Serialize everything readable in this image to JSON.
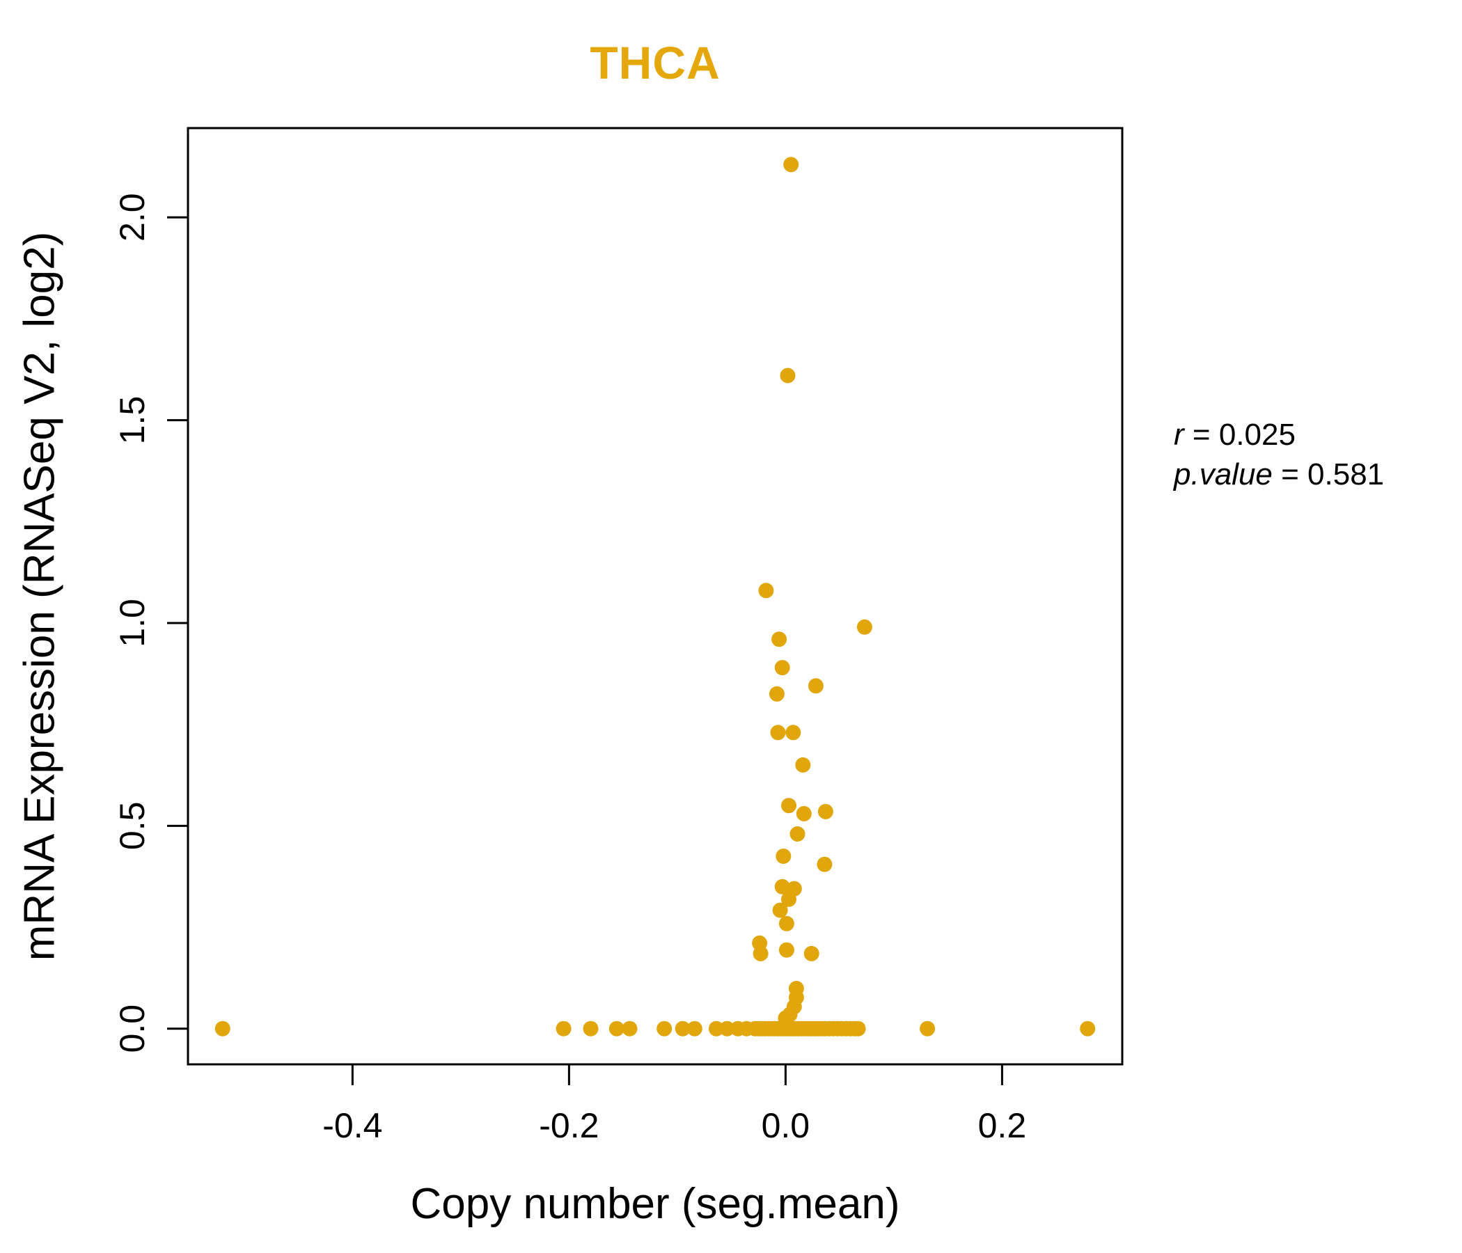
{
  "title": {
    "text": "THCA",
    "color": "#E5A80C"
  },
  "stats": {
    "lines": [
      {
        "var": "r",
        "eq": " = ",
        "val": "0.025"
      },
      {
        "var": "p.value",
        "eq": " = ",
        "val": "0.581"
      }
    ]
  },
  "chart_data": {
    "type": "scatter",
    "title": "THCA",
    "xlabel": "Copy number (seg.mean)",
    "ylabel": "mRNA Expression (RNASeq V2, log2)",
    "point_color": "#E2A60D",
    "title_color": "#E5A80C",
    "xlim": [
      -0.552,
      0.311
    ],
    "ylim": [
      -0.088,
      2.22
    ],
    "x_ticks": [
      -0.4,
      -0.2,
      0.0,
      0.2
    ],
    "x_tick_labels": [
      "-0.4",
      "-0.2",
      "0.0",
      "0.2"
    ],
    "y_ticks": [
      0.0,
      0.5,
      1.0,
      1.5,
      2.0
    ],
    "y_tick_labels": [
      "0.0",
      "0.5",
      "1.0",
      "1.5",
      "2.0"
    ],
    "grid": false,
    "legend": "none",
    "annotation": {
      "r": 0.025,
      "p_value": 0.581
    },
    "points": [
      [
        0.005,
        2.13
      ],
      [
        0.002,
        1.61
      ],
      [
        -0.018,
        1.08
      ],
      [
        0.073,
        0.99
      ],
      [
        -0.006,
        0.96
      ],
      [
        -0.003,
        0.89
      ],
      [
        0.028,
        0.845
      ],
      [
        -0.008,
        0.825
      ],
      [
        -0.007,
        0.73
      ],
      [
        0.007,
        0.73
      ],
      [
        0.016,
        0.65
      ],
      [
        0.003,
        0.55
      ],
      [
        0.037,
        0.535
      ],
      [
        0.017,
        0.53
      ],
      [
        0.011,
        0.48
      ],
      [
        -0.002,
        0.425
      ],
      [
        0.036,
        0.405
      ],
      [
        -0.003,
        0.35
      ],
      [
        0.008,
        0.345
      ],
      [
        0.003,
        0.319
      ],
      [
        -0.005,
        0.292
      ],
      [
        0.001,
        0.259
      ],
      [
        -0.024,
        0.211
      ],
      [
        0.001,
        0.194
      ],
      [
        -0.023,
        0.185
      ],
      [
        0.024,
        0.185
      ],
      [
        0.01,
        0.099
      ],
      [
        0.01,
        0.077
      ],
      [
        0.008,
        0.054
      ],
      [
        0.004,
        0.035
      ],
      [
        0.0,
        0.026
      ],
      [
        -0.52,
        0
      ],
      [
        -0.205,
        0
      ],
      [
        -0.18,
        0
      ],
      [
        -0.156,
        0
      ],
      [
        -0.144,
        0
      ],
      [
        -0.112,
        0
      ],
      [
        -0.095,
        0
      ],
      [
        -0.084,
        0
      ],
      [
        -0.064,
        0
      ],
      [
        -0.054,
        0
      ],
      [
        -0.044,
        0
      ],
      [
        -0.036,
        0
      ],
      [
        -0.028,
        0
      ],
      [
        -0.025,
        0
      ],
      [
        -0.022,
        0
      ],
      [
        -0.019,
        0
      ],
      [
        -0.016,
        0
      ],
      [
        -0.013,
        0
      ],
      [
        -0.01,
        0
      ],
      [
        -0.007,
        0
      ],
      [
        -0.004,
        0
      ],
      [
        -0.001,
        0
      ],
      [
        0.001,
        0
      ],
      [
        0.003,
        0
      ],
      [
        0.005,
        0
      ],
      [
        0.007,
        0
      ],
      [
        0.009,
        0
      ],
      [
        0.012,
        0
      ],
      [
        0.015,
        0
      ],
      [
        0.018,
        0
      ],
      [
        0.021,
        0
      ],
      [
        0.024,
        0
      ],
      [
        0.027,
        0
      ],
      [
        0.03,
        0
      ],
      [
        0.033,
        0
      ],
      [
        0.036,
        0
      ],
      [
        0.04,
        0
      ],
      [
        0.044,
        0
      ],
      [
        0.048,
        0
      ],
      [
        0.052,
        0
      ],
      [
        0.056,
        0
      ],
      [
        0.06,
        0
      ],
      [
        0.064,
        0
      ],
      [
        0.067,
        0
      ],
      [
        0.131,
        0
      ],
      [
        0.279,
        0
      ]
    ]
  }
}
